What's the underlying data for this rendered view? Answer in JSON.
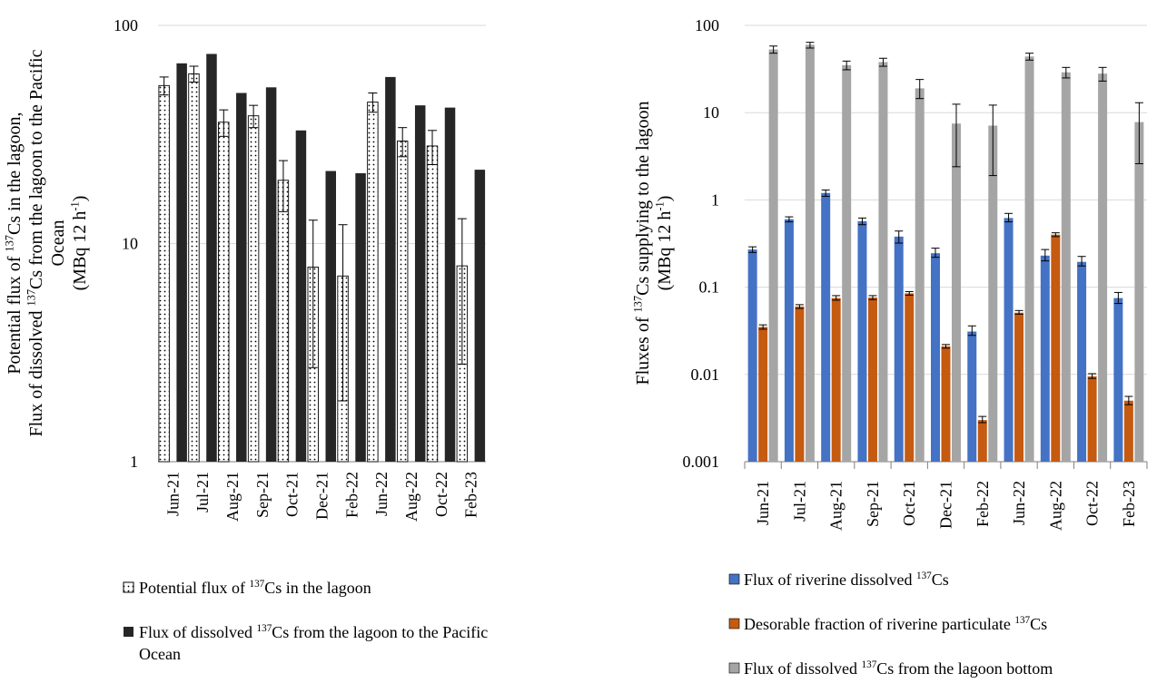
{
  "chart_data": [
    {
      "type": "bar",
      "scale": "log",
      "ylim": [
        1,
        100
      ],
      "yticks": [
        {
          "value": 100,
          "label": "100"
        },
        {
          "value": 10,
          "label": "10"
        },
        {
          "value": 1,
          "label": "1"
        }
      ],
      "ylabel_lines": [
        {
          "pre": "Potential flux of ",
          "sup": "137",
          "post": "Cs in the lagoon,"
        },
        {
          "pre": "Flux of dissolved ",
          "sup": "137",
          "post": "Cs from the lagoon to the Pacific"
        },
        {
          "pre": "Ocean",
          "sup": "",
          "post": ""
        },
        {
          "pre": "(MBq 12 h",
          "sup": "-1",
          "post": ")"
        }
      ],
      "categories": [
        "Jun-21",
        "Jul-21",
        "Aug-21",
        "Sep-21",
        "Oct-21",
        "Dec-21",
        "Feb-22",
        "Jun-22",
        "Aug-22",
        "Oct-22",
        "Feb-23"
      ],
      "series": [
        {
          "name": "Potential flux of 137Cs in the lagoon",
          "legend": {
            "pre": "Potential flux of ",
            "sup": "137",
            "post": "Cs in the lagoon"
          },
          "style": "dotted",
          "values": [
            53,
            60,
            36,
            38.5,
            19.5,
            7.8,
            7.1,
            44.5,
            29.5,
            28,
            7.9
          ],
          "errors": [
            [
              48,
              58
            ],
            [
              55,
              65
            ],
            [
              31,
              41
            ],
            [
              34,
              43
            ],
            [
              14,
              24
            ],
            [
              2.7,
              12.8
            ],
            [
              1.9,
              12.2
            ],
            [
              40,
              49
            ],
            [
              25,
              34
            ],
            [
              23,
              33
            ],
            [
              2.8,
              13
            ]
          ]
        },
        {
          "name": "Flux of dissolved 137Cs from the lagoon to the Pacific Ocean",
          "legend_lines": [
            {
              "pre": "Flux of dissolved ",
              "sup": "137",
              "post": "Cs from the lagoon to the Pacific"
            },
            {
              "pre": "Ocean",
              "sup": "",
              "post": ""
            }
          ],
          "color": "#262626",
          "values": [
            67,
            74,
            49,
            52,
            33,
            21.5,
            21,
            58,
            43,
            42,
            21.8
          ]
        }
      ]
    },
    {
      "type": "bar",
      "scale": "log",
      "ylim": [
        0.001,
        100
      ],
      "yticks": [
        {
          "value": 100,
          "label": "100"
        },
        {
          "value": 10,
          "label": "10"
        },
        {
          "value": 1,
          "label": "1"
        },
        {
          "value": 0.1,
          "label": "0.1"
        },
        {
          "value": 0.01,
          "label": "0.01"
        },
        {
          "value": 0.001,
          "label": "0.001"
        }
      ],
      "ylabel_lines": [
        {
          "pre": "Fluxes of ",
          "sup": "137",
          "post": "Cs supplying to the lagoon"
        },
        {
          "pre": "(MBq 12 h",
          "sup": "-1",
          "post": ")"
        }
      ],
      "categories": [
        "Jun-21",
        "Jul-21",
        "Aug-21",
        "Sep-21",
        "Oct-21",
        "Dec-21",
        "Feb-22",
        "Jun-22",
        "Aug-22",
        "Oct-22",
        "Feb-23"
      ],
      "series": [
        {
          "name": "Flux of riverine dissolved 137Cs",
          "legend": {
            "pre": "Flux of riverine dissolved ",
            "sup": "137",
            "post": "Cs"
          },
          "color": "#4472c4",
          "values": [
            0.27,
            0.6,
            1.2,
            0.57,
            0.38,
            0.245,
            0.031,
            0.62,
            0.23,
            0.195,
            0.075
          ],
          "errors": [
            [
              0.25,
              0.29
            ],
            [
              0.56,
              0.64
            ],
            [
              1.1,
              1.3
            ],
            [
              0.52,
              0.62
            ],
            [
              0.32,
              0.44
            ],
            [
              0.22,
              0.28
            ],
            [
              0.028,
              0.036
            ],
            [
              0.56,
              0.7
            ],
            [
              0.2,
              0.27
            ],
            [
              0.175,
              0.225
            ],
            [
              0.065,
              0.087
            ]
          ]
        },
        {
          "name": "Desorable fraction of riverine particulate 137Cs",
          "legend": {
            "pre": "Desorable fraction of riverine particulate ",
            "sup": "137",
            "post": "Cs"
          },
          "color": "#c55a11",
          "values": [
            0.035,
            0.06,
            0.075,
            0.076,
            0.085,
            0.021,
            0.003,
            0.051,
            0.4,
            0.0095,
            0.005
          ],
          "errors": [
            [
              0.033,
              0.037
            ],
            [
              0.057,
              0.063
            ],
            [
              0.071,
              0.08
            ],
            [
              0.072,
              0.08
            ],
            [
              0.081,
              0.089
            ],
            [
              0.02,
              0.022
            ],
            [
              0.0028,
              0.0033
            ],
            [
              0.049,
              0.054
            ],
            [
              0.38,
              0.42
            ],
            [
              0.009,
              0.0102
            ],
            [
              0.0045,
              0.0056
            ]
          ]
        },
        {
          "name": "Flux of dissolved 137Cs from the lagoon bottom",
          "legend": {
            "pre": "Flux of dissolved ",
            "sup": "137",
            "post": "Cs from the lagoon bottom"
          },
          "color": "#a5a5a5",
          "values": [
            53,
            60,
            35,
            38,
            19,
            7.5,
            7.1,
            44,
            29,
            28,
            7.8
          ],
          "errors": [
            [
              48,
              58
            ],
            [
              55,
              64
            ],
            [
              31,
              39
            ],
            [
              34,
              42
            ],
            [
              14.5,
              24
            ],
            [
              2.4,
              12.5
            ],
            [
              1.9,
              12.2
            ],
            [
              40,
              48
            ],
            [
              25,
              33
            ],
            [
              23,
              33
            ],
            [
              2.6,
              13
            ]
          ]
        }
      ]
    }
  ]
}
